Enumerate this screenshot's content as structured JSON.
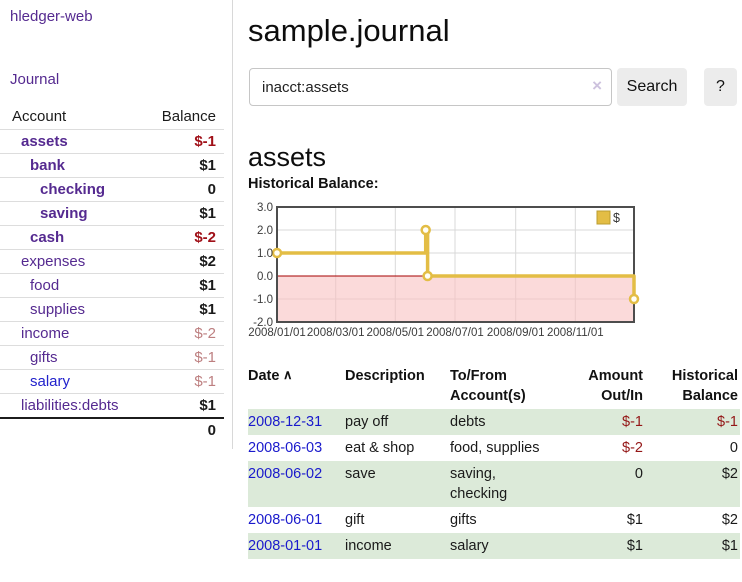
{
  "sidebar": {
    "brand": "hledger-web",
    "journal_link": "Journal",
    "accounts_table": {
      "headers": {
        "account": "Account",
        "balance": "Balance"
      },
      "rows": [
        {
          "account": "assets",
          "balance": "$-1",
          "depth": 1,
          "bold": true,
          "balance_style": "neg-bold"
        },
        {
          "account": "bank",
          "balance": "$1",
          "depth": 2,
          "bold": true,
          "balance_style": "bold"
        },
        {
          "account": "checking",
          "balance": "0",
          "depth": 3,
          "bold": true,
          "balance_style": "bold"
        },
        {
          "account": "saving",
          "balance": "$1",
          "depth": 3,
          "bold": true,
          "balance_style": "bold"
        },
        {
          "account": "cash",
          "balance": "$-2",
          "depth": 2,
          "bold": true,
          "balance_style": "neg-bold"
        },
        {
          "account": "expenses",
          "balance": "$2",
          "depth": 1,
          "bold": false,
          "balance_style": "bold"
        },
        {
          "account": "food",
          "balance": "$1",
          "depth": 2,
          "bold": false,
          "balance_style": "bold"
        },
        {
          "account": "supplies",
          "balance": "$1",
          "depth": 2,
          "bold": false,
          "balance_style": "bold"
        },
        {
          "account": "income",
          "balance": "$-2",
          "depth": 1,
          "bold": false,
          "balance_style": "muted"
        },
        {
          "account": "gifts",
          "balance": "$-1",
          "depth": 2,
          "bold": false,
          "balance_style": "muted"
        },
        {
          "account": "salary",
          "balance": "$-1",
          "depth": 2,
          "bold": false,
          "balance_style": "muted",
          "link_color": "blue"
        },
        {
          "account": "liabilities:debts",
          "balance": "$1",
          "depth": 1,
          "bold": false,
          "balance_style": "bold"
        }
      ],
      "total": "0"
    }
  },
  "main": {
    "title": "sample.journal",
    "search": {
      "value": "inacct:assets",
      "button_label": "Search",
      "help_label": "?"
    },
    "account_heading": "assets",
    "chart_heading": "Historical Balance:"
  },
  "icons": {
    "clear": "×",
    "sort_ascending": "∧",
    "legend_swatch": "square"
  },
  "chart_data": {
    "type": "line",
    "step": true,
    "title": "Historical Balance:",
    "legend": {
      "label": "$",
      "position": "top-right"
    },
    "xrange": [
      "2008-01-01",
      "2008-12-31"
    ],
    "ylim": [
      -2,
      3
    ],
    "yticks": [
      {
        "v": 3,
        "label": "3.0"
      },
      {
        "v": 2,
        "label": "2.0"
      },
      {
        "v": 1,
        "label": "1.0"
      },
      {
        "v": 0,
        "label": "0.0"
      },
      {
        "v": -1,
        "label": "-1.0"
      },
      {
        "v": -2,
        "label": "-2.0"
      }
    ],
    "xticks": [
      {
        "d": "2008-01-01",
        "label": "2008/01/01"
      },
      {
        "d": "2008-03-01",
        "label": "2008/03/01"
      },
      {
        "d": "2008-05-01",
        "label": "2008/05/01"
      },
      {
        "d": "2008-07-01",
        "label": "2008/07/01"
      },
      {
        "d": "2008-09-01",
        "label": "2008/09/01"
      },
      {
        "d": "2008-11-01",
        "label": "2008/11/01"
      }
    ],
    "series": [
      {
        "name": "$",
        "points": [
          {
            "x": "2008-01-01",
            "y": 1
          },
          {
            "x": "2008-06-01",
            "y": 2
          },
          {
            "x": "2008-06-03",
            "y": 0
          },
          {
            "x": "2008-12-31",
            "y": -1
          }
        ]
      }
    ],
    "negative_region": true,
    "colors": {
      "line": "#e3bd45",
      "marker_fill": "#fffef6",
      "legend_border": "#bb9d30",
      "negative_fill": "#fbdada",
      "zero_line": "#a60000",
      "grid": "#d9d9d9",
      "grid_in_negative": "#eccaca",
      "border": "#4d4d4d",
      "tick_text": "#3c3c3c"
    }
  },
  "register_table": {
    "headers": [
      {
        "label": "Date",
        "align": "left",
        "sorted": "asc"
      },
      {
        "label": "Description",
        "align": "left"
      },
      {
        "label": "To/From Account(s)",
        "align": "left"
      },
      {
        "label": "Amount Out/In",
        "align": "right"
      },
      {
        "label": "Historical Balance",
        "align": "right"
      }
    ],
    "rows": [
      {
        "date": "2008-12-31",
        "description": "pay off",
        "accounts": "debts",
        "amount": "$-1",
        "amount_neg": true,
        "balance": "$-1",
        "balance_neg": true
      },
      {
        "date": "2008-06-03",
        "description": "eat & shop",
        "accounts": "food, supplies",
        "amount": "$-2",
        "amount_neg": true,
        "balance": "0",
        "balance_neg": false
      },
      {
        "date": "2008-06-02",
        "description": "save",
        "accounts": "saving, checking",
        "amount": "0",
        "amount_neg": false,
        "balance": "$2",
        "balance_neg": false
      },
      {
        "date": "2008-06-01",
        "description": "gift",
        "accounts": "gifts",
        "amount": "$1",
        "amount_neg": false,
        "balance": "$2",
        "balance_neg": false
      },
      {
        "date": "2008-01-01",
        "description": "income",
        "accounts": "salary",
        "amount": "$1",
        "amount_neg": false,
        "balance": "$1",
        "balance_neg": false
      }
    ]
  },
  "colors": {
    "link_purple": "#552a90",
    "link_blue": "#2222cc",
    "negative_dark": "#a01018",
    "negative_table": "#941717",
    "negative_muted": "#bd7f80",
    "row_stripe_green": "#dcead9",
    "button_gray": "#ececec"
  }
}
